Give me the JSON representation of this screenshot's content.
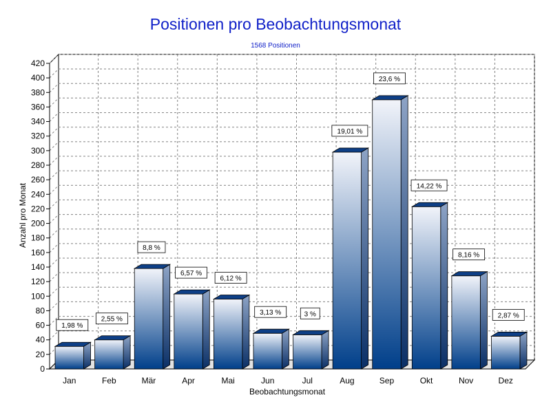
{
  "chart_data": {
    "type": "bar",
    "title": "Positionen pro Beobachtungsmonat",
    "subtitle": "1568 Positionen",
    "xlabel": "Beobachtungsmonat",
    "ylabel": "Anzahl pro Monat",
    "ylim": [
      0,
      420
    ],
    "ytick_step": 20,
    "yticks": [
      "0",
      "20",
      "40",
      "60",
      "80",
      "100",
      "120",
      "140",
      "160",
      "180",
      "200",
      "220",
      "240",
      "260",
      "280",
      "300",
      "320",
      "340",
      "360",
      "380",
      "400",
      "420"
    ],
    "grid": true,
    "legend": "none",
    "categories": [
      "Jan",
      "Feb",
      "Mär",
      "Apr",
      "Mai",
      "Jun",
      "Jul",
      "Aug",
      "Sep",
      "Okt",
      "Nov",
      "Dez"
    ],
    "values": [
      31,
      40,
      138,
      103,
      96,
      49,
      47,
      298,
      370,
      223,
      128,
      45
    ],
    "data_labels": [
      "1,98 %",
      "2,55 %",
      "8,8 %",
      "6,57 %",
      "6,12 %",
      "3,13 %",
      "3 %",
      "19,01 %",
      "23,6 %",
      "14,22 %",
      "8,16 %",
      "2,87 %"
    ],
    "colors": {
      "bar_top": "#f2f4fa",
      "bar_bottom": "#003f8a",
      "bar_cap": "#0e3f86",
      "bar_side": "#12386e",
      "title": "#1020c8",
      "grid": "#808080"
    }
  }
}
